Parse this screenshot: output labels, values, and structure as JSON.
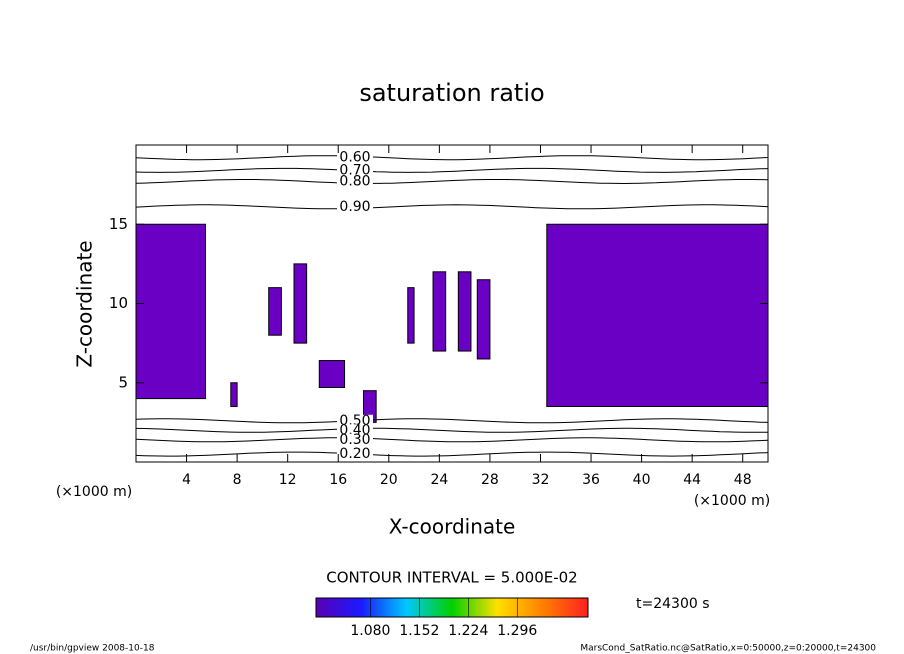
{
  "chart_data": {
    "type": "contour",
    "title": "saturation ratio",
    "x_label": "X-coordinate",
    "y_label": "Z-coordinate",
    "x_unit": "(×1000 m)",
    "y_unit": "(×1000 m)",
    "xlim": [
      0,
      50
    ],
    "xticks": [
      4,
      8,
      12,
      16,
      20,
      24,
      28,
      32,
      36,
      40,
      44,
      48
    ],
    "ylim": [
      0,
      20
    ],
    "yticks": [
      5,
      10,
      15
    ],
    "contours": [
      {
        "value": 0.6,
        "label": "0.60",
        "z": 19.2
      },
      {
        "value": 0.7,
        "label": "0.70",
        "z": 18.4
      },
      {
        "value": 0.8,
        "label": "0.80",
        "z": 17.7
      },
      {
        "value": 0.9,
        "label": "0.90",
        "z": 16.1
      },
      {
        "value": 0.5,
        "label": "0.50",
        "z": 2.6
      },
      {
        "value": 0.4,
        "label": "0.40",
        "z": 2.0
      },
      {
        "value": 0.3,
        "label": "0.30",
        "z": 1.4
      },
      {
        "value": 0.2,
        "label": "0.20",
        "z": 0.5
      }
    ],
    "shade_color": "#6a00c4",
    "shaded_regions": [
      {
        "x": [
          0,
          5.5
        ],
        "z": [
          4,
          15
        ]
      },
      {
        "x": [
          32.5,
          50
        ],
        "z": [
          3.5,
          15
        ]
      },
      {
        "x": [
          12.5,
          13.5
        ],
        "z": [
          7.5,
          12.5
        ]
      },
      {
        "x": [
          10.5,
          11.5
        ],
        "z": [
          8,
          11
        ]
      },
      {
        "x": [
          21.5,
          22
        ],
        "z": [
          7.5,
          11
        ]
      },
      {
        "x": [
          23.5,
          24.5
        ],
        "z": [
          7,
          12
        ]
      },
      {
        "x": [
          25.5,
          26.5
        ],
        "z": [
          7,
          12
        ]
      },
      {
        "x": [
          27,
          28
        ],
        "z": [
          6.5,
          11.5
        ]
      },
      {
        "x": [
          18,
          19
        ],
        "z": [
          2.5,
          4.5
        ]
      },
      {
        "x": [
          14.5,
          16.5
        ],
        "z": [
          4.7,
          6.4
        ]
      },
      {
        "x": [
          7.5,
          8
        ],
        "z": [
          3.5,
          5
        ]
      }
    ],
    "contour_interval": "CONTOUR INTERVAL = 5.000E-02",
    "colorbar_lim": [
      1.0,
      1.4
    ],
    "colorbar_ticks": [
      {
        "value": 1.08,
        "label": "1.080"
      },
      {
        "value": 1.152,
        "label": "1.152"
      },
      {
        "value": 1.224,
        "label": "1.224"
      },
      {
        "value": 1.296,
        "label": "1.296"
      }
    ],
    "colorbar_colors": [
      "#5a00b4",
      "#1a1aff",
      "#00c8ff",
      "#00d000",
      "#ffe000",
      "#ff8000",
      "#ff2020"
    ],
    "time_label": "t=24300 s",
    "footer_left": "/usr/bin/gpview  2008-10-18",
    "footer_right": "MarsCond_SatRatio.nc@SatRatio,x=0:50000,z=0:20000,t=24300"
  }
}
